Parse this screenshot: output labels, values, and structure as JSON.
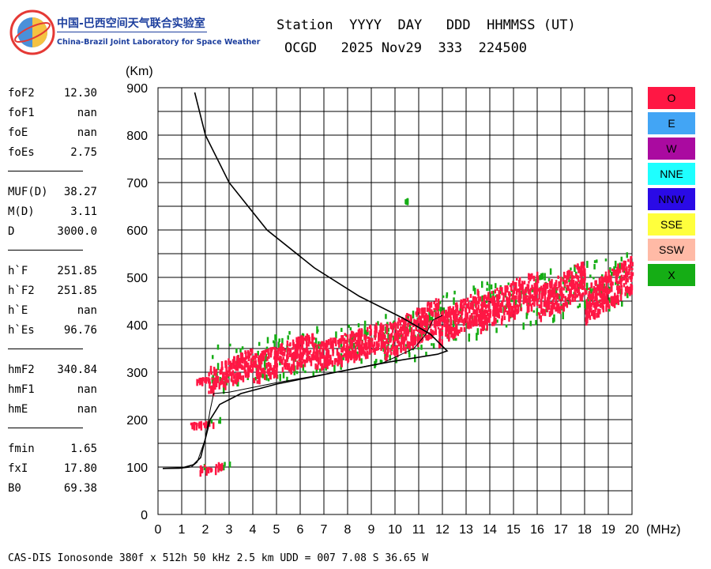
{
  "lab": {
    "name_cn": "中国-巴西空间天气联合实验室",
    "name_en": "China-Brazil Joint Laboratory for Space Weather"
  },
  "header": {
    "line1": "Station  YYYY  DAY   DDD  HHMMSS (UT)",
    "line2": "OCGD   2025 Nov29  333  224500"
  },
  "params": [
    {
      "name": "foF2",
      "value": "12.30"
    },
    {
      "name": "foF1",
      "value": "nan"
    },
    {
      "name": "foE",
      "value": "nan"
    },
    {
      "name": "foEs",
      "value": "2.75"
    },
    {
      "name": "MUF(D)",
      "value": "38.27"
    },
    {
      "name": "M(D)",
      "value": "3.11"
    },
    {
      "name": "D",
      "value": "3000.0"
    },
    {
      "name": "h`F",
      "value": "251.85"
    },
    {
      "name": "h`F2",
      "value": "251.85"
    },
    {
      "name": "h`E",
      "value": "nan"
    },
    {
      "name": "h`Es",
      "value": "96.76"
    },
    {
      "name": "hmF2",
      "value": "340.84"
    },
    {
      "name": "hmF1",
      "value": "nan"
    },
    {
      "name": "hmE",
      "value": "nan"
    },
    {
      "name": "fmin",
      "value": "1.65"
    },
    {
      "name": "fxI",
      "value": "17.80"
    },
    {
      "name": "B0",
      "value": "69.38"
    }
  ],
  "legend": [
    {
      "label": "O",
      "color": "#ff1744"
    },
    {
      "label": "E",
      "color": "#42a5f5"
    },
    {
      "label": "W",
      "color": "#aa0aa0"
    },
    {
      "label": "NNE",
      "color": "#1effff"
    },
    {
      "label": "NNW",
      "color": "#2a0ae6"
    },
    {
      "label": "SSE",
      "color": "#ffff3c"
    },
    {
      "label": "SSW",
      "color": "#ffbaa6"
    },
    {
      "label": "X",
      "color": "#15ad15"
    }
  ],
  "footer": "CAS-DIS Ionosonde 380f x 512h 50 kHz 2.5 km UDD = 007 7.08 S 36.65 W",
  "chart_data": {
    "type": "scatter",
    "title": "",
    "xlabel": "(MHz)",
    "ylabel": "(Km)",
    "xlim": [
      0,
      20
    ],
    "ylim": [
      0,
      900
    ],
    "xticks": [
      0,
      1,
      2,
      3,
      4,
      5,
      6,
      7,
      8,
      9,
      10,
      11,
      12,
      13,
      14,
      15,
      16,
      17,
      18,
      19,
      20
    ],
    "yticks": [
      0,
      100,
      200,
      300,
      400,
      500,
      600,
      700,
      800,
      900
    ],
    "grid": true,
    "legend_position": "right",
    "o_trace_clusters": [
      {
        "x_range": [
          1.6,
          2.7
        ],
        "h_range": [
          92,
          112
        ]
      },
      {
        "x_range": [
          1.3,
          2.3
        ],
        "h_range": [
          188,
          200
        ]
      },
      {
        "x_range": [
          1.6,
          2.1
        ],
        "h_range": [
          282,
          292
        ]
      },
      {
        "x_range": [
          2.1,
          4.0
        ],
        "h_range": [
          260,
          355
        ]
      },
      {
        "x_range": [
          4.0,
          6.6
        ],
        "h_range": [
          280,
          390
        ]
      },
      {
        "x_range": [
          6.6,
          9.5
        ],
        "h_range": [
          305,
          410
        ]
      },
      {
        "x_range": [
          9.5,
          11.8
        ],
        "h_range": [
          330,
          460
        ]
      },
      {
        "x_range": [
          11.8,
          13.5
        ],
        "h_range": [
          360,
          480
        ]
      },
      {
        "x_range": [
          13.5,
          16.0
        ],
        "h_range": [
          390,
          520
        ]
      },
      {
        "x_range": [
          16.0,
          18.0
        ],
        "h_range": [
          410,
          540
        ]
      },
      {
        "x_range": [
          18.0,
          20.0
        ],
        "h_range": [
          410,
          550
        ]
      }
    ],
    "x_trace_clusters": [
      {
        "x_range": [
          1.7,
          3.0
        ],
        "h_range": [
          96,
          115
        ]
      },
      {
        "x_range": [
          1.8,
          2.7
        ],
        "h_range": [
          190,
          208
        ]
      },
      {
        "x_range": [
          2.2,
          11.5
        ],
        "h_range": [
          262,
          440
        ]
      },
      {
        "x_range": [
          10.4,
          10.5
        ],
        "h_range": [
          663,
          668
        ]
      },
      {
        "x_range": [
          11.5,
          20.0
        ],
        "h_range": [
          360,
          560
        ]
      }
    ],
    "profile_curve": [
      [
        1.55,
        890
      ],
      [
        2.0,
        800
      ],
      [
        3.0,
        700
      ],
      [
        4.6,
        600
      ],
      [
        6.6,
        520
      ],
      [
        8.5,
        460
      ],
      [
        10.3,
        415
      ],
      [
        11.5,
        380
      ],
      [
        12.2,
        345
      ],
      [
        11.8,
        338
      ],
      [
        9.8,
        322
      ],
      [
        7.3,
        298
      ],
      [
        5.0,
        275
      ],
      [
        3.5,
        255
      ],
      [
        2.6,
        232
      ],
      [
        2.2,
        200
      ],
      [
        1.95,
        150
      ],
      [
        1.8,
        120
      ],
      [
        1.5,
        105
      ],
      [
        1.0,
        98
      ],
      [
        0.2,
        97
      ]
    ],
    "virtual_height_curve": [
      [
        0.2,
        97
      ],
      [
        0.9,
        97
      ],
      [
        1.4,
        100
      ],
      [
        1.65,
        110
      ],
      [
        2.0,
        160
      ],
      [
        2.2,
        220
      ],
      [
        2.35,
        255
      ],
      [
        3.0,
        258
      ],
      [
        5.0,
        278
      ],
      [
        7.5,
        300
      ],
      [
        9.5,
        320
      ],
      [
        10.8,
        350
      ],
      [
        11.3,
        380
      ],
      [
        11.6,
        410
      ],
      [
        12.0,
        420
      ]
    ]
  }
}
